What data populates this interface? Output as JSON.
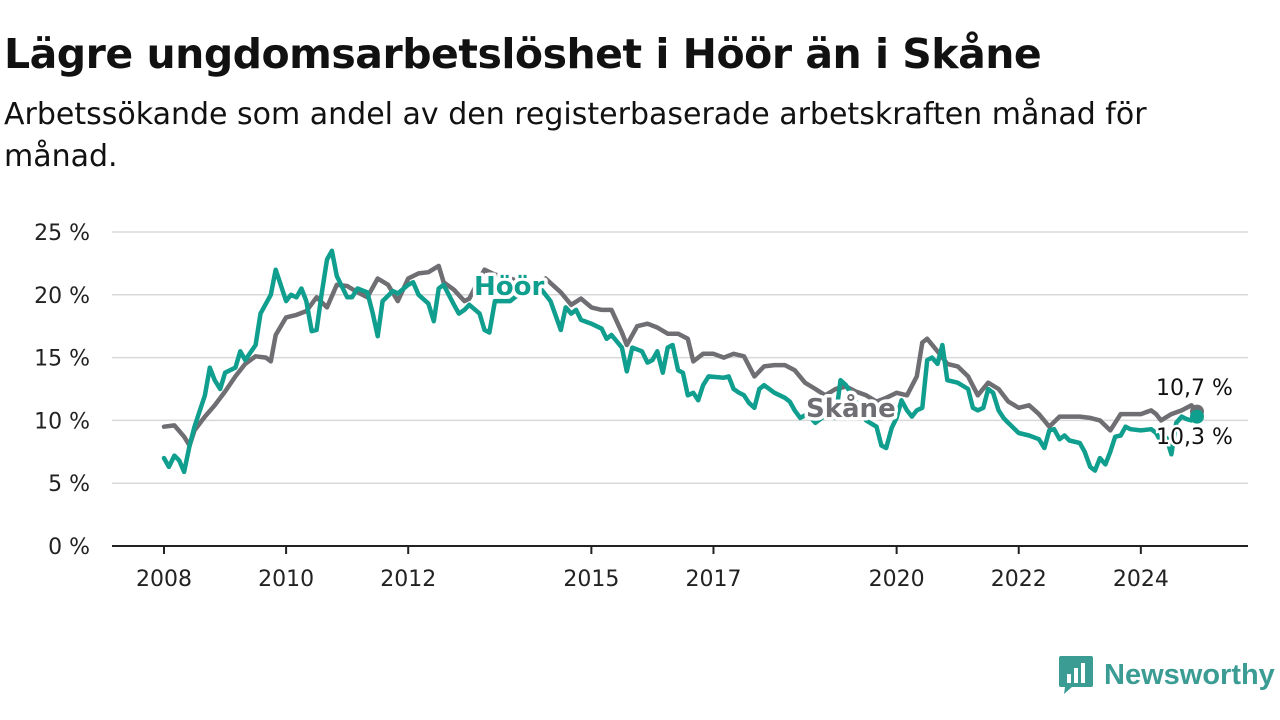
{
  "header": {
    "title": "Lägre ungdomsarbetslöshet i Höör än i Skåne",
    "subtitle": "Arbetssökande som andel av den registerbaserade arbetskraften månad för månad."
  },
  "brand": {
    "name": "Newsworthy",
    "icon": "chart-bubble-icon",
    "color": "#3b9c94"
  },
  "chart_data": {
    "type": "line",
    "title": "Lägre ungdomsarbetslöshet i Höör än i Skåne",
    "subtitle": "Arbetssökande som andel av den registerbaserade arbetskraften månad för månad.",
    "xlabel": "",
    "ylabel": "",
    "xlim": [
      2008,
      2024.92
    ],
    "ylim": [
      0,
      25
    ],
    "grid": true,
    "x_ticks": [
      "2008",
      "2010",
      "2012",
      "2015",
      "2017",
      "2020",
      "2022",
      "2024"
    ],
    "y_ticks": [
      "0 %",
      "5 %",
      "10 %",
      "15 %",
      "20 %",
      "25 %"
    ],
    "series": [
      {
        "name": "Skåne",
        "color": "#6e6e73",
        "end_label": "10,7 %",
        "points": [
          [
            2008.0,
            9.5
          ],
          [
            2008.17,
            9.6
          ],
          [
            2008.33,
            8.7
          ],
          [
            2008.42,
            8.0
          ],
          [
            2008.5,
            9.2
          ],
          [
            2008.67,
            10.3
          ],
          [
            2008.83,
            11.2
          ],
          [
            2009.0,
            12.3
          ],
          [
            2009.17,
            13.5
          ],
          [
            2009.33,
            14.5
          ],
          [
            2009.5,
            15.1
          ],
          [
            2009.67,
            15.0
          ],
          [
            2009.75,
            14.7
          ],
          [
            2009.83,
            16.8
          ],
          [
            2010.0,
            18.2
          ],
          [
            2010.17,
            18.4
          ],
          [
            2010.33,
            18.7
          ],
          [
            2010.5,
            19.8
          ],
          [
            2010.67,
            19.0
          ],
          [
            2010.83,
            20.8
          ],
          [
            2011.0,
            20.7
          ],
          [
            2011.17,
            20.2
          ],
          [
            2011.33,
            19.8
          ],
          [
            2011.5,
            21.3
          ],
          [
            2011.67,
            20.8
          ],
          [
            2011.83,
            19.5
          ],
          [
            2012.0,
            21.3
          ],
          [
            2012.17,
            21.7
          ],
          [
            2012.33,
            21.8
          ],
          [
            2012.5,
            22.3
          ],
          [
            2012.58,
            21.0
          ],
          [
            2012.75,
            20.4
          ],
          [
            2012.92,
            19.5
          ],
          [
            2013.0,
            19.7
          ],
          [
            2013.17,
            21.3
          ],
          [
            2013.25,
            22.0
          ],
          [
            2013.42,
            21.6
          ],
          [
            2013.58,
            21.5
          ],
          [
            2013.83,
            21.0
          ],
          [
            2014.0,
            20.4
          ],
          [
            2014.25,
            21.3
          ],
          [
            2014.5,
            20.2
          ],
          [
            2014.67,
            19.2
          ],
          [
            2014.83,
            19.7
          ],
          [
            2015.0,
            19.0
          ],
          [
            2015.17,
            18.8
          ],
          [
            2015.33,
            18.8
          ],
          [
            2015.5,
            17.0
          ],
          [
            2015.58,
            16.0
          ],
          [
            2015.75,
            17.5
          ],
          [
            2015.92,
            17.7
          ],
          [
            2016.08,
            17.4
          ],
          [
            2016.25,
            16.9
          ],
          [
            2016.42,
            16.9
          ],
          [
            2016.58,
            16.5
          ],
          [
            2016.67,
            14.7
          ],
          [
            2016.83,
            15.3
          ],
          [
            2017.0,
            15.3
          ],
          [
            2017.17,
            15.0
          ],
          [
            2017.33,
            15.3
          ],
          [
            2017.5,
            15.1
          ],
          [
            2017.67,
            13.5
          ],
          [
            2017.83,
            14.3
          ],
          [
            2018.0,
            14.4
          ],
          [
            2018.17,
            14.4
          ],
          [
            2018.33,
            14.0
          ],
          [
            2018.5,
            13.0
          ],
          [
            2018.67,
            12.5
          ],
          [
            2018.83,
            12.0
          ],
          [
            2019.0,
            12.5
          ],
          [
            2019.17,
            12.7
          ],
          [
            2019.33,
            12.3
          ],
          [
            2019.5,
            12.0
          ],
          [
            2019.67,
            11.5
          ],
          [
            2019.83,
            11.8
          ],
          [
            2020.0,
            12.2
          ],
          [
            2020.17,
            12.0
          ],
          [
            2020.33,
            13.5
          ],
          [
            2020.42,
            16.2
          ],
          [
            2020.5,
            16.5
          ],
          [
            2020.67,
            15.5
          ],
          [
            2020.83,
            14.5
          ],
          [
            2021.0,
            14.3
          ],
          [
            2021.17,
            13.5
          ],
          [
            2021.33,
            12.0
          ],
          [
            2021.5,
            13.0
          ],
          [
            2021.67,
            12.5
          ],
          [
            2021.83,
            11.5
          ],
          [
            2022.0,
            11.0
          ],
          [
            2022.17,
            11.2
          ],
          [
            2022.33,
            10.5
          ],
          [
            2022.5,
            9.5
          ],
          [
            2022.67,
            10.3
          ],
          [
            2022.83,
            10.3
          ],
          [
            2023.0,
            10.3
          ],
          [
            2023.17,
            10.2
          ],
          [
            2023.33,
            10.0
          ],
          [
            2023.5,
            9.2
          ],
          [
            2023.67,
            10.5
          ],
          [
            2023.83,
            10.5
          ],
          [
            2024.0,
            10.5
          ],
          [
            2024.17,
            10.8
          ],
          [
            2024.25,
            10.5
          ],
          [
            2024.33,
            10.0
          ],
          [
            2024.5,
            10.5
          ],
          [
            2024.67,
            10.8
          ],
          [
            2024.83,
            11.2
          ],
          [
            2024.92,
            10.7
          ]
        ]
      },
      {
        "name": "Höör",
        "color": "#109e8e",
        "end_label": "10,3 %",
        "points": [
          [
            2008.0,
            7.0
          ],
          [
            2008.08,
            6.3
          ],
          [
            2008.17,
            7.2
          ],
          [
            2008.25,
            6.8
          ],
          [
            2008.33,
            5.9
          ],
          [
            2008.42,
            8.0
          ],
          [
            2008.5,
            9.5
          ],
          [
            2008.67,
            12.0
          ],
          [
            2008.75,
            14.2
          ],
          [
            2008.83,
            13.2
          ],
          [
            2008.92,
            12.5
          ],
          [
            2009.0,
            13.8
          ],
          [
            2009.17,
            14.2
          ],
          [
            2009.25,
            15.5
          ],
          [
            2009.33,
            14.8
          ],
          [
            2009.5,
            16.0
          ],
          [
            2009.58,
            18.5
          ],
          [
            2009.75,
            20.0
          ],
          [
            2009.83,
            22.0
          ],
          [
            2010.0,
            19.5
          ],
          [
            2010.08,
            20.0
          ],
          [
            2010.17,
            19.8
          ],
          [
            2010.25,
            20.5
          ],
          [
            2010.33,
            19.5
          ],
          [
            2010.42,
            17.1
          ],
          [
            2010.5,
            17.2
          ],
          [
            2010.58,
            20.0
          ],
          [
            2010.67,
            22.8
          ],
          [
            2010.75,
            23.5
          ],
          [
            2010.83,
            21.5
          ],
          [
            2011.0,
            19.8
          ],
          [
            2011.08,
            19.8
          ],
          [
            2011.17,
            20.5
          ],
          [
            2011.33,
            20.2
          ],
          [
            2011.42,
            18.5
          ],
          [
            2011.5,
            16.7
          ],
          [
            2011.58,
            19.5
          ],
          [
            2011.75,
            20.3
          ],
          [
            2011.83,
            20.1
          ],
          [
            2012.0,
            20.8
          ],
          [
            2012.08,
            21.0
          ],
          [
            2012.17,
            20.0
          ],
          [
            2012.33,
            19.3
          ],
          [
            2012.42,
            17.9
          ],
          [
            2012.5,
            20.5
          ],
          [
            2012.58,
            20.8
          ],
          [
            2012.75,
            19.2
          ],
          [
            2012.83,
            18.5
          ],
          [
            2012.92,
            18.8
          ],
          [
            2013.0,
            19.2
          ],
          [
            2013.17,
            18.5
          ],
          [
            2013.25,
            17.2
          ],
          [
            2013.33,
            17.0
          ],
          [
            2013.42,
            19.5
          ],
          [
            2013.67,
            19.5
          ],
          [
            2014.0,
            20.8
          ],
          [
            2014.17,
            20.5
          ],
          [
            2014.33,
            19.5
          ],
          [
            2014.5,
            17.2
          ],
          [
            2014.58,
            19.0
          ],
          [
            2014.67,
            18.5
          ],
          [
            2014.75,
            18.8
          ],
          [
            2014.83,
            18.0
          ],
          [
            2015.0,
            17.7
          ],
          [
            2015.17,
            17.3
          ],
          [
            2015.25,
            16.5
          ],
          [
            2015.33,
            16.8
          ],
          [
            2015.5,
            15.8
          ],
          [
            2015.58,
            13.9
          ],
          [
            2015.67,
            15.8
          ],
          [
            2015.83,
            15.5
          ],
          [
            2015.92,
            14.6
          ],
          [
            2016.0,
            14.8
          ],
          [
            2016.08,
            15.5
          ],
          [
            2016.17,
            13.8
          ],
          [
            2016.25,
            15.8
          ],
          [
            2016.33,
            16.0
          ],
          [
            2016.42,
            14.0
          ],
          [
            2016.5,
            13.8
          ],
          [
            2016.58,
            12.0
          ],
          [
            2016.67,
            12.2
          ],
          [
            2016.75,
            11.6
          ],
          [
            2016.83,
            12.8
          ],
          [
            2016.92,
            13.5
          ],
          [
            2017.17,
            13.4
          ],
          [
            2017.25,
            13.5
          ],
          [
            2017.33,
            12.5
          ],
          [
            2017.42,
            12.2
          ],
          [
            2017.5,
            12.0
          ],
          [
            2017.58,
            11.4
          ],
          [
            2017.67,
            11.0
          ],
          [
            2017.75,
            12.5
          ],
          [
            2017.83,
            12.8
          ],
          [
            2018.0,
            12.2
          ],
          [
            2018.17,
            11.8
          ],
          [
            2018.25,
            11.5
          ],
          [
            2018.33,
            10.8
          ],
          [
            2018.42,
            10.2
          ],
          [
            2018.5,
            10.4
          ],
          [
            2018.58,
            10.3
          ],
          [
            2018.67,
            9.8
          ],
          [
            2018.83,
            10.4
          ],
          [
            2019.0,
            10.2
          ],
          [
            2019.08,
            13.2
          ],
          [
            2019.17,
            12.8
          ],
          [
            2019.33,
            11.5
          ],
          [
            2019.5,
            10.0
          ],
          [
            2019.67,
            9.5
          ],
          [
            2019.75,
            8.0
          ],
          [
            2019.83,
            7.8
          ],
          [
            2019.92,
            9.4
          ],
          [
            2020.0,
            10.2
          ],
          [
            2020.08,
            11.6
          ],
          [
            2020.17,
            10.8
          ],
          [
            2020.25,
            10.3
          ],
          [
            2020.33,
            10.8
          ],
          [
            2020.42,
            11.0
          ],
          [
            2020.5,
            14.8
          ],
          [
            2020.58,
            15.0
          ],
          [
            2020.67,
            14.5
          ],
          [
            2020.75,
            16.0
          ],
          [
            2020.83,
            13.2
          ],
          [
            2021.0,
            13.0
          ],
          [
            2021.17,
            12.5
          ],
          [
            2021.25,
            11.0
          ],
          [
            2021.33,
            10.8
          ],
          [
            2021.42,
            11.0
          ],
          [
            2021.5,
            12.5
          ],
          [
            2021.58,
            12.2
          ],
          [
            2021.67,
            10.8
          ],
          [
            2021.75,
            10.2
          ],
          [
            2021.83,
            9.8
          ],
          [
            2022.0,
            9.0
          ],
          [
            2022.17,
            8.8
          ],
          [
            2022.33,
            8.5
          ],
          [
            2022.42,
            7.8
          ],
          [
            2022.5,
            9.2
          ],
          [
            2022.58,
            9.3
          ],
          [
            2022.67,
            8.5
          ],
          [
            2022.75,
            8.8
          ],
          [
            2022.83,
            8.4
          ],
          [
            2023.0,
            8.2
          ],
          [
            2023.08,
            7.5
          ],
          [
            2023.17,
            6.3
          ],
          [
            2023.25,
            6.0
          ],
          [
            2023.33,
            7.0
          ],
          [
            2023.42,
            6.5
          ],
          [
            2023.5,
            7.5
          ],
          [
            2023.58,
            8.7
          ],
          [
            2023.67,
            8.8
          ],
          [
            2023.75,
            9.5
          ],
          [
            2023.83,
            9.3
          ],
          [
            2024.0,
            9.2
          ],
          [
            2024.17,
            9.3
          ],
          [
            2024.25,
            9.0
          ],
          [
            2024.33,
            8.3
          ],
          [
            2024.42,
            8.6
          ],
          [
            2024.5,
            7.3
          ],
          [
            2024.58,
            9.8
          ],
          [
            2024.67,
            10.3
          ],
          [
            2024.75,
            10.1
          ],
          [
            2024.83,
            10.0
          ],
          [
            2024.92,
            10.3
          ]
        ]
      }
    ]
  }
}
